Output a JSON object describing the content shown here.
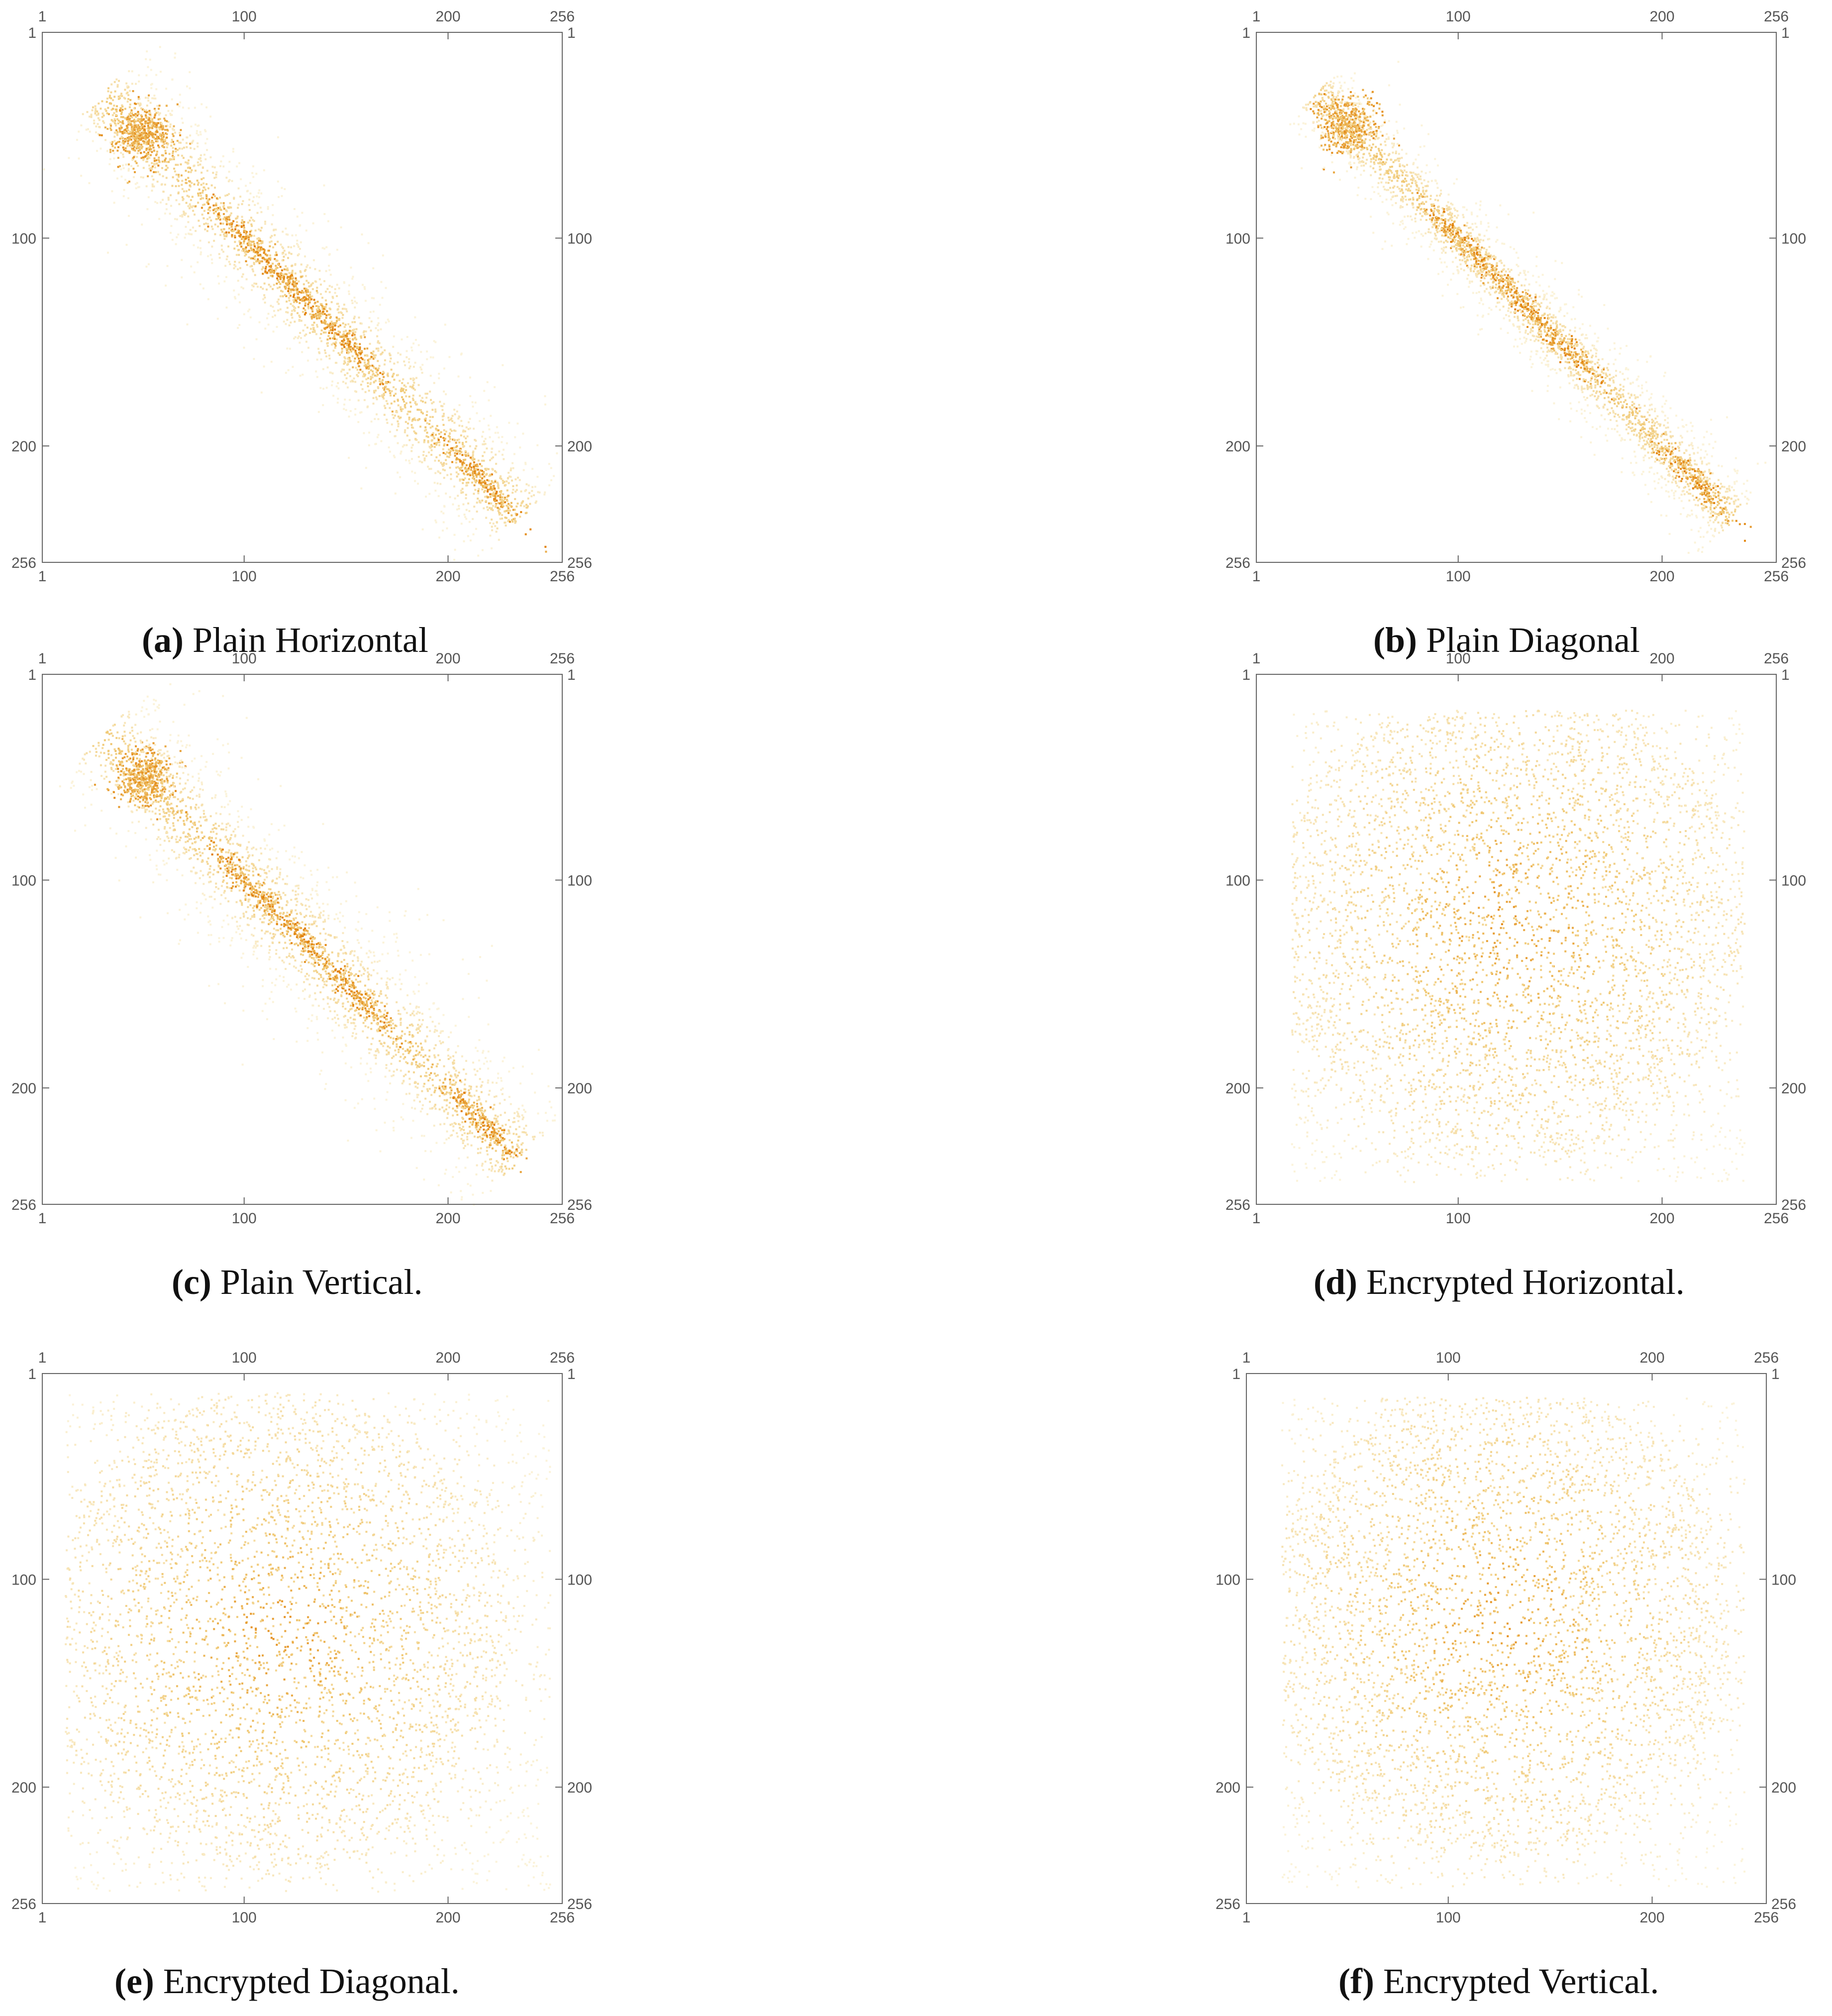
{
  "figure": {
    "chart_data": [
      {
        "type": "heatmap",
        "tag": "(a)",
        "title": "Plain Horizontal",
        "x_ticks": [
          1,
          100,
          200,
          256
        ],
        "y_ticks": [
          1,
          100,
          200,
          256
        ],
        "xlim": [
          1,
          256
        ],
        "ylim": [
          1,
          256
        ],
        "distribution": {
          "kind": "diagonal",
          "x_range": [
            30,
            235
          ],
          "blob": [
            50,
            50
          ],
          "dense_points": [
            [
              100,
              100
            ],
            [
              125,
              125
            ],
            [
              150,
              150
            ],
            [
              215,
              215
            ]
          ],
          "spread": 22
        }
      },
      {
        "type": "heatmap",
        "tag": "(b)",
        "title": "Plain Diagonal",
        "x_ticks": [
          1,
          100,
          200,
          256
        ],
        "y_ticks": [
          1,
          100,
          200,
          256
        ],
        "xlim": [
          1,
          256
        ],
        "ylim": [
          1,
          256
        ],
        "distribution": {
          "kind": "diagonal",
          "x_range": [
            30,
            235
          ],
          "blob": [
            45,
            45
          ],
          "dense_points": [
            [
              100,
              100
            ],
            [
              125,
              125
            ],
            [
              150,
              150
            ],
            [
              215,
              215
            ]
          ],
          "spread": 14
        }
      },
      {
        "type": "heatmap",
        "tag": "(c)",
        "title": "Plain Vertical.",
        "x_ticks": [
          1,
          100,
          200,
          256
        ],
        "y_ticks": [
          1,
          100,
          200,
          256
        ],
        "xlim": [
          1,
          256
        ],
        "ylim": [
          1,
          256
        ],
        "distribution": {
          "kind": "diagonal",
          "x_range": [
            30,
            235
          ],
          "blob": [
            50,
            50
          ],
          "dense_points": [
            [
              100,
              100
            ],
            [
              125,
              125
            ],
            [
              155,
              155
            ],
            [
              215,
              215
            ]
          ],
          "spread": 24
        }
      },
      {
        "type": "heatmap",
        "tag": "(d)",
        "title": "Encrypted Horizontal.",
        "x_ticks": [
          1,
          100,
          200,
          256
        ],
        "y_ticks": [
          1,
          100,
          200,
          256
        ],
        "xlim": [
          1,
          256
        ],
        "ylim": [
          1,
          256
        ],
        "distribution": {
          "kind": "uniform",
          "x_range": [
            18,
            240
          ],
          "y_range": [
            18,
            245
          ],
          "center": [
            125,
            120
          ]
        }
      },
      {
        "type": "heatmap",
        "tag": "(e)",
        "title": "Encrypted Diagonal.",
        "x_ticks": [
          1,
          100,
          200,
          256
        ],
        "y_ticks": [
          1,
          100,
          200,
          256
        ],
        "xlim": [
          1,
          256
        ],
        "ylim": [
          1,
          256
        ],
        "distribution": {
          "kind": "uniform",
          "x_range": [
            12,
            250
          ],
          "y_range": [
            10,
            250
          ],
          "center": [
            115,
            125
          ]
        }
      },
      {
        "type": "heatmap",
        "tag": "(f)",
        "title": "Encrypted Vertical.",
        "x_ticks": [
          1,
          100,
          200,
          256
        ],
        "y_ticks": [
          1,
          100,
          200,
          256
        ],
        "xlim": [
          1,
          256
        ],
        "ylim": [
          1,
          256
        ],
        "distribution": {
          "kind": "uniform",
          "x_range": [
            18,
            245
          ],
          "y_range": [
            12,
            248
          ],
          "center": [
            125,
            120
          ]
        }
      }
    ],
    "colors": {
      "light": "#fbf3da",
      "mid": "#f0c873",
      "dark": "#e07b00",
      "axis": "#666666"
    }
  }
}
